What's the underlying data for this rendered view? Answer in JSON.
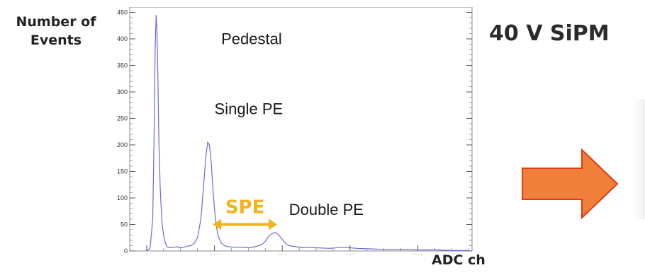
{
  "slide": {
    "title": "40 V SiPM",
    "y_axis_label_line1": "Number of",
    "y_axis_label_line2": "Events",
    "x_axis_label": "ADC ch"
  },
  "chart_data": {
    "type": "line",
    "xlabel": "ADC ch",
    "ylabel": "Number of Events",
    "xlim": [
      -50,
      960
    ],
    "ylim": [
      0,
      460
    ],
    "x_ticks": [
      0,
      200,
      400,
      600,
      800
    ],
    "y_ticks": [
      0,
      50,
      100,
      150,
      200,
      250,
      300,
      350,
      400,
      450
    ],
    "grid": false,
    "line_color": "#6b6bd6",
    "series": [
      {
        "x": [
          0,
          10,
          18,
          22,
          25,
          28,
          30,
          33,
          36,
          40,
          45,
          50,
          55,
          60,
          70,
          80,
          90,
          100,
          110,
          120,
          130,
          140,
          150,
          160,
          165,
          170,
          175,
          180,
          185,
          190,
          195,
          200,
          205,
          210,
          220,
          230,
          240,
          260,
          280,
          300,
          320,
          340,
          350,
          360,
          370,
          380,
          390,
          400,
          410,
          420,
          440,
          460,
          480,
          500,
          540,
          580,
          600,
          620,
          660,
          700,
          750,
          800,
          850,
          900,
          950
        ],
        "y": [
          0,
          5,
          60,
          220,
          380,
          445,
          420,
          330,
          210,
          120,
          55,
          30,
          15,
          8,
          6,
          7,
          8,
          6,
          7,
          9,
          10,
          14,
          25,
          60,
          100,
          140,
          180,
          205,
          200,
          170,
          120,
          80,
          50,
          30,
          15,
          10,
          8,
          7,
          7,
          6,
          8,
          12,
          18,
          28,
          33,
          35,
          30,
          22,
          14,
          10,
          8,
          6,
          7,
          6,
          5,
          7,
          6,
          5,
          4,
          3,
          3,
          2,
          2,
          1,
          1
        ]
      }
    ],
    "annotations": [
      {
        "text": "Pedestal",
        "x": 220,
        "y": 390
      },
      {
        "text": "Single PE",
        "x": 200,
        "y": 258
      },
      {
        "text": "Double PE",
        "x": 420,
        "y": 68
      }
    ],
    "spe_marker": {
      "text": "SPE",
      "x_start": 195,
      "x_end": 385,
      "y": 50,
      "color": "#f2b21c"
    }
  },
  "arrow": {
    "fill": "#f07f3a",
    "stroke": "#e03a18"
  }
}
